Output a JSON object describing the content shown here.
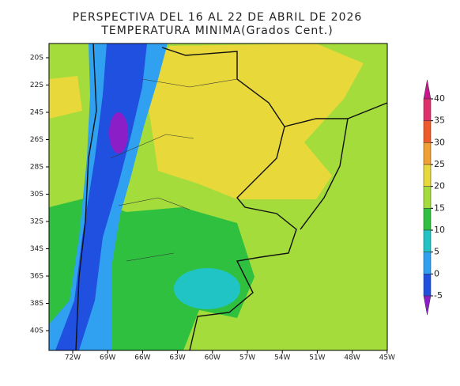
{
  "title_lines": [
    "PERSPECTIVA DEL 16 AL 22 DE ABRIL DE 2026",
    "TEMPERATURA MINIMA(Grados Cent.)"
  ],
  "lat_labels": [
    "20S",
    "22S",
    "24S",
    "26S",
    "28S",
    "30S",
    "32S",
    "34S",
    "36S",
    "38S",
    "40S"
  ],
  "lon_labels": [
    "72W",
    "69W",
    "66W",
    "63W",
    "60W",
    "57W",
    "54W",
    "51W",
    "48W",
    "45W"
  ],
  "colorbar": {
    "levels": [
      40,
      35,
      30,
      25,
      20,
      15,
      10,
      5,
      0,
      -5
    ],
    "colors": [
      "#c8168c",
      "#e0306a",
      "#f05a2a",
      "#f0a032",
      "#e8d83a",
      "#a4dc3c",
      "#30c040",
      "#20c4c4",
      "#30a0f0",
      "#2050e0",
      "#8c1ec8"
    ]
  }
}
